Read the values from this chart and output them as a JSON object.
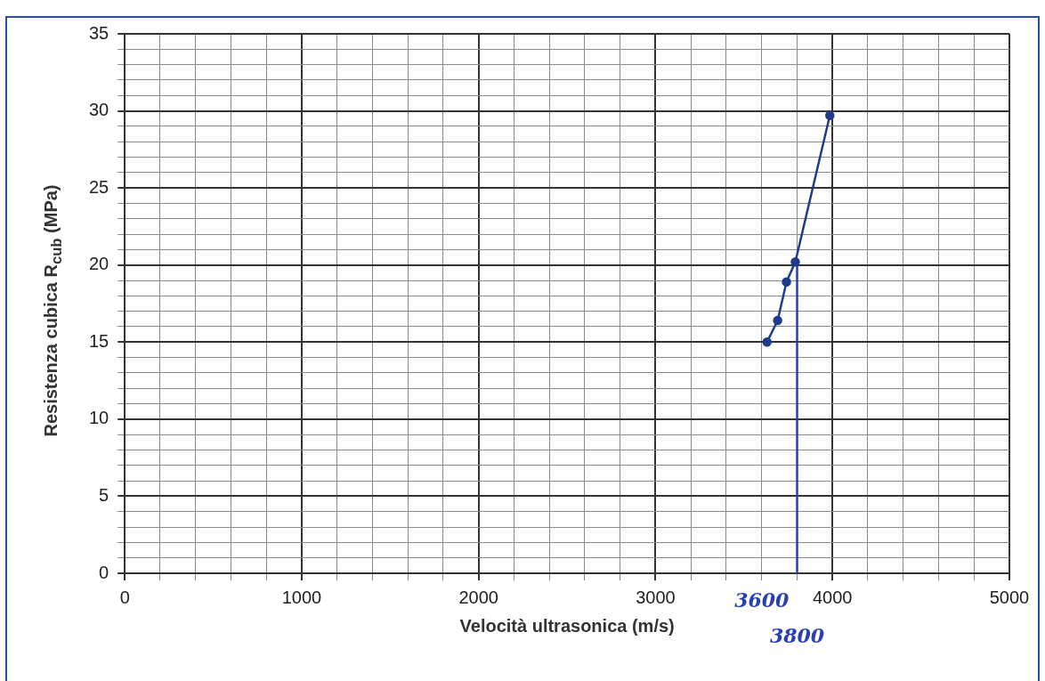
{
  "chart_data": {
    "type": "line",
    "xlabel": "Velocità ultrasonica (m/s)",
    "ylabel": "Resistenza cubica R$_{cub}$ (MPa)",
    "series": [
      {
        "color": "#1f3c8c",
        "x": [
          3630,
          3690,
          3740,
          3790,
          3985
        ],
        "values": [
          15,
          16.4,
          18.9,
          20.2,
          29.7
        ],
        "marker": "circle"
      },
      {
        "color": "#2a3fb0",
        "x": [
          3800,
          3800
        ],
        "values": [
          0,
          20.2
        ],
        "marker": "none"
      }
    ],
    "xlim": [
      0,
      5000
    ],
    "ylim": [
      0,
      35
    ],
    "xticks": [
      0,
      {
        "value": 200,
        "label": null
      },
      {
        "value": 400,
        "label": null
      },
      {
        "value": 600,
        "label": null
      },
      {
        "value": 800,
        "label": null
      },
      1000,
      {
        "value": 1200,
        "label": null
      },
      {
        "value": 1400,
        "label": null
      },
      {
        "value": 1600,
        "label": null
      },
      {
        "value": 1800,
        "label": null
      },
      2000,
      {
        "value": 2200,
        "label": null
      },
      {
        "value": 2400,
        "label": null
      },
      {
        "value": 2600,
        "label": null
      },
      {
        "value": 2800,
        "label": null
      },
      3000,
      {
        "value": 3200,
        "label": null
      },
      {
        "value": 3400,
        "label": null
      },
      {
        "value": 3600,
        "label": null
      },
      {
        "value": 3800,
        "label": null
      },
      4000,
      {
        "value": 4200,
        "label": null
      },
      {
        "value": 4400,
        "label": null
      },
      {
        "value": 4600,
        "label": null
      },
      {
        "value": 4800,
        "label": null
      },
      5000
    ],
    "yticks": [
      0,
      {
        "value": 1,
        "label": null
      },
      {
        "value": 2,
        "label": null
      },
      {
        "value": 3,
        "label": null
      },
      {
        "value": 4,
        "label": null
      },
      5,
      {
        "value": 6,
        "label": null
      },
      {
        "value": 7,
        "label": null
      },
      {
        "value": 8,
        "label": null
      },
      {
        "value": 9,
        "label": null
      },
      10,
      {
        "value": 11,
        "label": null
      },
      {
        "value": 12,
        "label": null
      },
      {
        "value": 13,
        "label": null
      },
      {
        "value": 14,
        "label": null
      },
      15,
      {
        "value": 16,
        "label": null
      },
      {
        "value": 17,
        "label": null
      },
      {
        "value": 18,
        "label": null
      },
      {
        "value": 19,
        "label": null
      },
      20,
      {
        "value": 21,
        "label": null
      },
      {
        "value": 22,
        "label": null
      },
      {
        "value": 23,
        "label": null
      },
      {
        "value": 24,
        "label": null
      },
      25,
      {
        "value": 26,
        "label": null
      },
      {
        "value": 27,
        "label": null
      },
      {
        "value": 28,
        "label": null
      },
      {
        "value": 29,
        "label": null
      },
      30,
      {
        "value": 31,
        "label": null
      },
      {
        "value": 32,
        "label": null
      },
      {
        "value": 33,
        "label": null
      },
      {
        "value": 34,
        "label": null
      },
      35
    ],
    "annotations": [
      "3600",
      "3800"
    ],
    "grid": true,
    "legend": false
  }
}
